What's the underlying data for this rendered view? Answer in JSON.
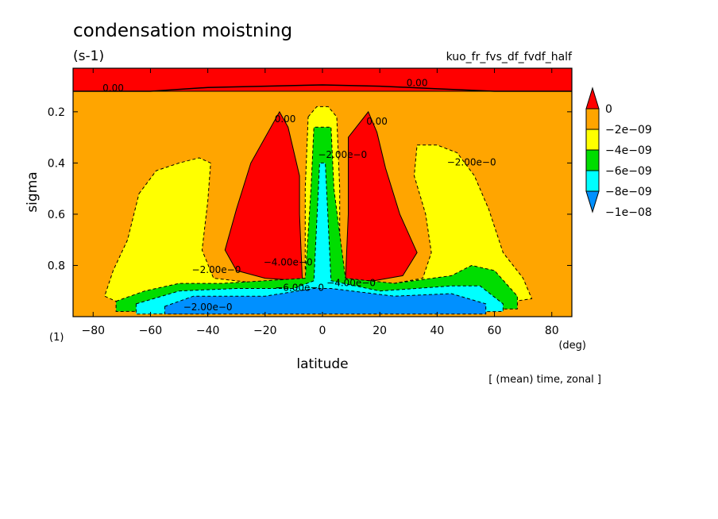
{
  "chart_data": {
    "type": "heatmap",
    "title": "condensation moistning",
    "units": "(s-1)",
    "run_label": "kuo_fr_fvs_df_fvdf_half",
    "xlabel": "latitude",
    "x_unit": "(deg)",
    "ylabel": "sigma",
    "y_unit": "(1)",
    "footer": "[ (mean) time, zonal ]",
    "xlim": [
      -87,
      87
    ],
    "ylim": [
      1.0,
      0.03
    ],
    "x_ticks": [
      -80,
      -60,
      -40,
      -20,
      0,
      20,
      40,
      60,
      80
    ],
    "x_tick_labels": [
      "−80",
      "−60",
      "−40",
      "−20",
      "0",
      "20",
      "40",
      "60",
      "80"
    ],
    "y_ticks": [
      0.2,
      0.4,
      0.6,
      0.8
    ],
    "y_tick_labels": [
      "0.2",
      "0.4",
      "0.6",
      "0.8"
    ],
    "colorbar": {
      "labels": [
        "0",
        "−2e−09",
        "−4e−09",
        "−6e−09",
        "−8e−09",
        "−1e−08"
      ],
      "colors": [
        "#ff0000",
        "#ffa500",
        "#ffff00",
        "#00dd00",
        "#00ffff",
        "#0090ff"
      ]
    },
    "contour_labels": [
      "0.00",
      "0.00",
      "0.00",
      "0.00",
      "−2.00e−0",
      "−2.00e−0",
      "−2.00e−0",
      "−4.00e−0",
      "−6.00e−0",
      "−4.00e−0",
      "−2.00e−0"
    ],
    "regions": [
      {
        "name": "upper-level-band",
        "level": 0,
        "points": [
          [
            -87,
            0.03
          ],
          [
            87,
            0.03
          ],
          [
            87,
            0.12
          ],
          [
            -87,
            0.12
          ]
        ]
      },
      {
        "name": "southern-tropical-lobe",
        "level": 0,
        "points": [
          [
            -15,
            0.2
          ],
          [
            -12,
            0.26
          ],
          [
            -8,
            0.45
          ],
          [
            -8,
            0.6
          ],
          [
            -7,
            0.86
          ],
          [
            -20,
            0.85
          ],
          [
            -30,
            0.82
          ],
          [
            -34,
            0.74
          ],
          [
            -30,
            0.58
          ],
          [
            -25,
            0.4
          ]
        ]
      },
      {
        "name": "northern-tropical-lobe",
        "level": 0,
        "points": [
          [
            16,
            0.2
          ],
          [
            19,
            0.28
          ],
          [
            22,
            0.42
          ],
          [
            27,
            0.6
          ],
          [
            33,
            0.75
          ],
          [
            28,
            0.84
          ],
          [
            18,
            0.86
          ],
          [
            8,
            0.86
          ],
          [
            9,
            0.6
          ],
          [
            9,
            0.3
          ]
        ]
      },
      {
        "name": "southern-midlatitude",
        "level": 2,
        "points": [
          [
            -64,
            0.52
          ],
          [
            -58,
            0.43
          ],
          [
            -50,
            0.4
          ],
          [
            -43,
            0.38
          ],
          [
            -39,
            0.4
          ],
          [
            -40,
            0.55
          ],
          [
            -42,
            0.74
          ],
          [
            -38,
            0.85
          ],
          [
            -22,
            0.87
          ],
          [
            -5,
            0.88
          ],
          [
            -5,
            0.92
          ],
          [
            -50,
            0.93
          ],
          [
            -70,
            0.95
          ],
          [
            -76,
            0.92
          ],
          [
            -73,
            0.82
          ],
          [
            -68,
            0.7
          ]
        ]
      },
      {
        "name": "northern-midlatitude",
        "level": 2,
        "points": [
          [
            33,
            0.33
          ],
          [
            40,
            0.33
          ],
          [
            47,
            0.36
          ],
          [
            53,
            0.45
          ],
          [
            58,
            0.58
          ],
          [
            63,
            0.75
          ],
          [
            70,
            0.85
          ],
          [
            73,
            0.93
          ],
          [
            55,
            0.96
          ],
          [
            20,
            0.93
          ],
          [
            8,
            0.88
          ],
          [
            25,
            0.87
          ],
          [
            35,
            0.85
          ],
          [
            38,
            0.75
          ],
          [
            36,
            0.6
          ],
          [
            32,
            0.45
          ]
        ]
      },
      {
        "name": "equatorial-column",
        "level": 2,
        "points": [
          [
            -5,
            0.22
          ],
          [
            -2,
            0.18
          ],
          [
            2,
            0.18
          ],
          [
            5,
            0.22
          ],
          [
            6,
            0.5
          ],
          [
            6,
            0.82
          ],
          [
            -6,
            0.82
          ],
          [
            -6,
            0.5
          ]
        ]
      },
      {
        "name": "near-surface-green",
        "level": 3,
        "points": [
          [
            -72,
            0.94
          ],
          [
            -62,
            0.9
          ],
          [
            -50,
            0.87
          ],
          [
            -35,
            0.87
          ],
          [
            -20,
            0.86
          ],
          [
            -6,
            0.85
          ],
          [
            -4,
            0.5
          ],
          [
            -3,
            0.26
          ],
          [
            3,
            0.26
          ],
          [
            4,
            0.5
          ],
          [
            8,
            0.85
          ],
          [
            25,
            0.87
          ],
          [
            45,
            0.84
          ],
          [
            52,
            0.8
          ],
          [
            60,
            0.82
          ],
          [
            68,
            0.92
          ],
          [
            68,
            0.97
          ],
          [
            -72,
            0.98
          ]
        ]
      },
      {
        "name": "near-surface-cyan",
        "level": 4,
        "points": [
          [
            -65,
            0.95
          ],
          [
            -50,
            0.9
          ],
          [
            -30,
            0.89
          ],
          [
            -10,
            0.89
          ],
          [
            -3,
            0.86
          ],
          [
            -1,
            0.4
          ],
          [
            1,
            0.4
          ],
          [
            3,
            0.86
          ],
          [
            20,
            0.9
          ],
          [
            45,
            0.88
          ],
          [
            55,
            0.88
          ],
          [
            63,
            0.95
          ],
          [
            63,
            0.98
          ],
          [
            -65,
            0.99
          ]
        ]
      },
      {
        "name": "near-surface-blue",
        "level": 5,
        "points": [
          [
            -55,
            0.96
          ],
          [
            -45,
            0.92
          ],
          [
            -20,
            0.92
          ],
          [
            -3,
            0.89
          ],
          [
            3,
            0.89
          ],
          [
            25,
            0.92
          ],
          [
            45,
            0.91
          ],
          [
            57,
            0.95
          ],
          [
            57,
            0.99
          ],
          [
            -55,
            0.99
          ]
        ]
      }
    ]
  }
}
